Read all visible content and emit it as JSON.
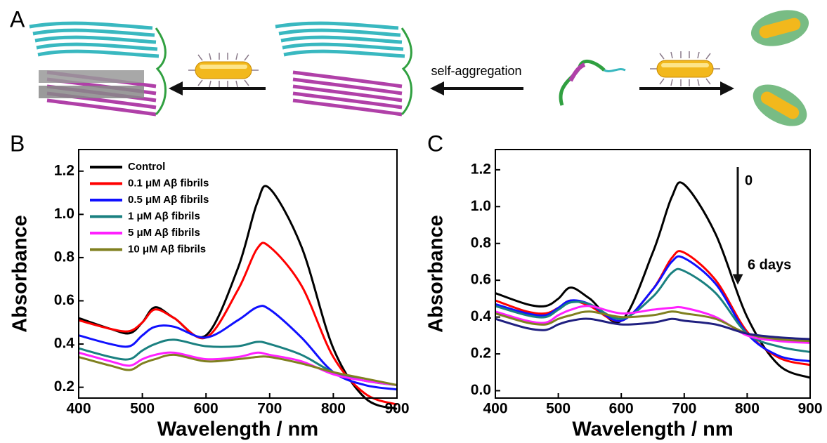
{
  "panel_a": {
    "label": "A",
    "arrow_label": "self-aggregation"
  },
  "chart_data": [
    {
      "type": "line",
      "panel_label": "B",
      "x_label": "Wavelength / nm",
      "y_label": "Absorbance",
      "x": [
        400,
        450,
        480,
        500,
        520,
        550,
        600,
        650,
        680,
        700,
        750,
        800,
        850,
        900
      ],
      "xlim": [
        400,
        900
      ],
      "xticks": [
        400,
        500,
        600,
        700,
        800,
        900
      ],
      "ylim": [
        0.15,
        1.3
      ],
      "yticks": [
        0.2,
        0.4,
        0.6,
        0.8,
        {
          "value": 1,
          "label": "1.0"
        },
        1.2
      ],
      "legend": "top-left",
      "series": [
        {
          "name": "Control",
          "color": "#000000",
          "values": [
            0.52,
            0.47,
            0.45,
            0.5,
            0.57,
            0.52,
            0.44,
            0.75,
            1.05,
            1.12,
            0.85,
            0.38,
            0.15,
            0.1
          ]
        },
        {
          "name": "0.1 μM Aβ fibrils",
          "color": "#ff0000",
          "values": [
            0.51,
            0.47,
            0.46,
            0.5,
            0.56,
            0.52,
            0.43,
            0.65,
            0.84,
            0.85,
            0.67,
            0.34,
            0.17,
            0.12
          ]
        },
        {
          "name": "0.5 μM Aβ fibrils",
          "color": "#1010ff",
          "values": [
            0.44,
            0.4,
            0.39,
            0.44,
            0.48,
            0.48,
            0.43,
            0.51,
            0.57,
            0.56,
            0.43,
            0.27,
            0.21,
            0.19
          ]
        },
        {
          "name": "1 μM Aβ fibrils",
          "color": "#1a8080",
          "values": [
            0.38,
            0.34,
            0.33,
            0.37,
            0.4,
            0.42,
            0.39,
            0.39,
            0.41,
            0.4,
            0.35,
            0.27,
            0.23,
            0.21
          ]
        },
        {
          "name": "5 μM Aβ fibrils",
          "color": "#ff20ff",
          "values": [
            0.36,
            0.32,
            0.3,
            0.33,
            0.35,
            0.36,
            0.33,
            0.34,
            0.36,
            0.35,
            0.32,
            0.26,
            0.23,
            0.21
          ]
        },
        {
          "name": "10 μM Aβ fibrils",
          "color": "#808020",
          "values": [
            0.34,
            0.3,
            0.28,
            0.31,
            0.33,
            0.35,
            0.32,
            0.33,
            0.34,
            0.34,
            0.31,
            0.27,
            0.24,
            0.21
          ]
        }
      ]
    },
    {
      "type": "line",
      "panel_label": "C",
      "x_label": "Wavelength / nm",
      "y_label": "Absorbance",
      "x": [
        400,
        450,
        480,
        500,
        520,
        550,
        600,
        650,
        680,
        700,
        750,
        800,
        850,
        900
      ],
      "xlim": [
        400,
        900
      ],
      "xticks": [
        400,
        500,
        600,
        700,
        800,
        900
      ],
      "ylim": [
        -0.04,
        1.31
      ],
      "yticks": [
        {
          "value": 0,
          "label": "0.0"
        },
        0.2,
        0.4,
        0.6,
        0.8,
        {
          "value": 1,
          "label": "1.0"
        },
        1.2
      ],
      "annotations": [
        "0",
        "6 days"
      ],
      "series": [
        {
          "color": "#000000",
          "values": [
            0.53,
            0.47,
            0.46,
            0.5,
            0.56,
            0.5,
            0.38,
            0.75,
            1.05,
            1.12,
            0.85,
            0.4,
            0.14,
            0.07
          ]
        },
        {
          "color": "#ff0000",
          "values": [
            0.49,
            0.43,
            0.42,
            0.45,
            0.49,
            0.46,
            0.38,
            0.55,
            0.72,
            0.75,
            0.6,
            0.32,
            0.18,
            0.14
          ]
        },
        {
          "color": "#1010ff",
          "values": [
            0.47,
            0.42,
            0.41,
            0.45,
            0.49,
            0.47,
            0.38,
            0.55,
            0.7,
            0.72,
            0.58,
            0.31,
            0.19,
            0.16
          ]
        },
        {
          "color": "#1a8080",
          "values": [
            0.46,
            0.41,
            0.4,
            0.44,
            0.48,
            0.47,
            0.39,
            0.51,
            0.64,
            0.65,
            0.53,
            0.31,
            0.24,
            0.21
          ]
        },
        {
          "color": "#ff20ff",
          "values": [
            0.43,
            0.38,
            0.37,
            0.41,
            0.44,
            0.46,
            0.42,
            0.44,
            0.45,
            0.45,
            0.4,
            0.3,
            0.27,
            0.26
          ]
        },
        {
          "color": "#808020",
          "values": [
            0.42,
            0.37,
            0.36,
            0.39,
            0.41,
            0.43,
            0.4,
            0.41,
            0.43,
            0.42,
            0.39,
            0.31,
            0.28,
            0.27
          ]
        },
        {
          "color": "#202080",
          "values": [
            0.39,
            0.34,
            0.33,
            0.36,
            0.38,
            0.39,
            0.36,
            0.37,
            0.39,
            0.38,
            0.36,
            0.31,
            0.29,
            0.28
          ]
        }
      ]
    }
  ]
}
